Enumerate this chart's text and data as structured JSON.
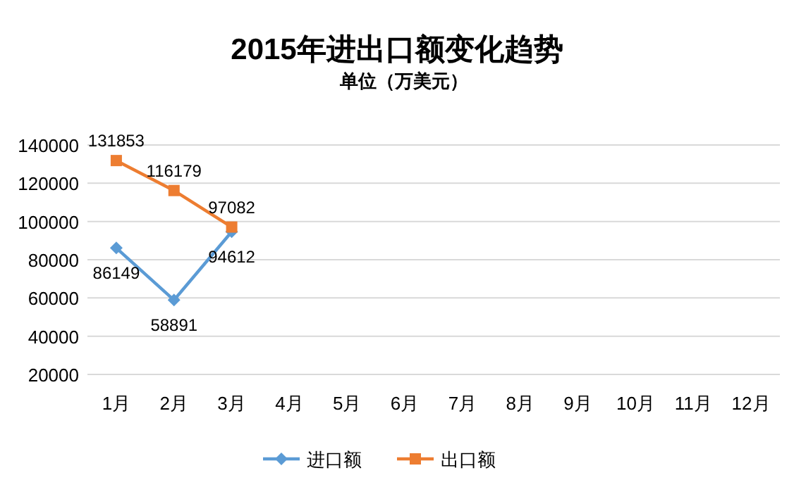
{
  "chart_data": {
    "type": "line",
    "title": "2015年进出口额变化趋势",
    "subtitle": "单位（万美元）",
    "categories": [
      "1月",
      "2月",
      "3月",
      "4月",
      "5月",
      "6月",
      "7月",
      "8月",
      "9月",
      "10月",
      "11月",
      "12月"
    ],
    "series": [
      {
        "name": "进口额",
        "color": "#5b9bd5",
        "marker": "diamond",
        "values": [
          86149,
          58891,
          94612,
          null,
          null,
          null,
          null,
          null,
          null,
          null,
          null,
          null
        ]
      },
      {
        "name": "出口额",
        "color": "#ed7d31",
        "marker": "square",
        "values": [
          131853,
          116179,
          97082,
          null,
          null,
          null,
          null,
          null,
          null,
          null,
          null,
          null
        ]
      }
    ],
    "ylim": [
      20000,
      140000
    ],
    "yticks": [
      20000,
      40000,
      60000,
      80000,
      100000,
      120000,
      140000
    ],
    "grid": "y",
    "legend": "bottom",
    "data_labels": true,
    "line_style": "solid"
  }
}
